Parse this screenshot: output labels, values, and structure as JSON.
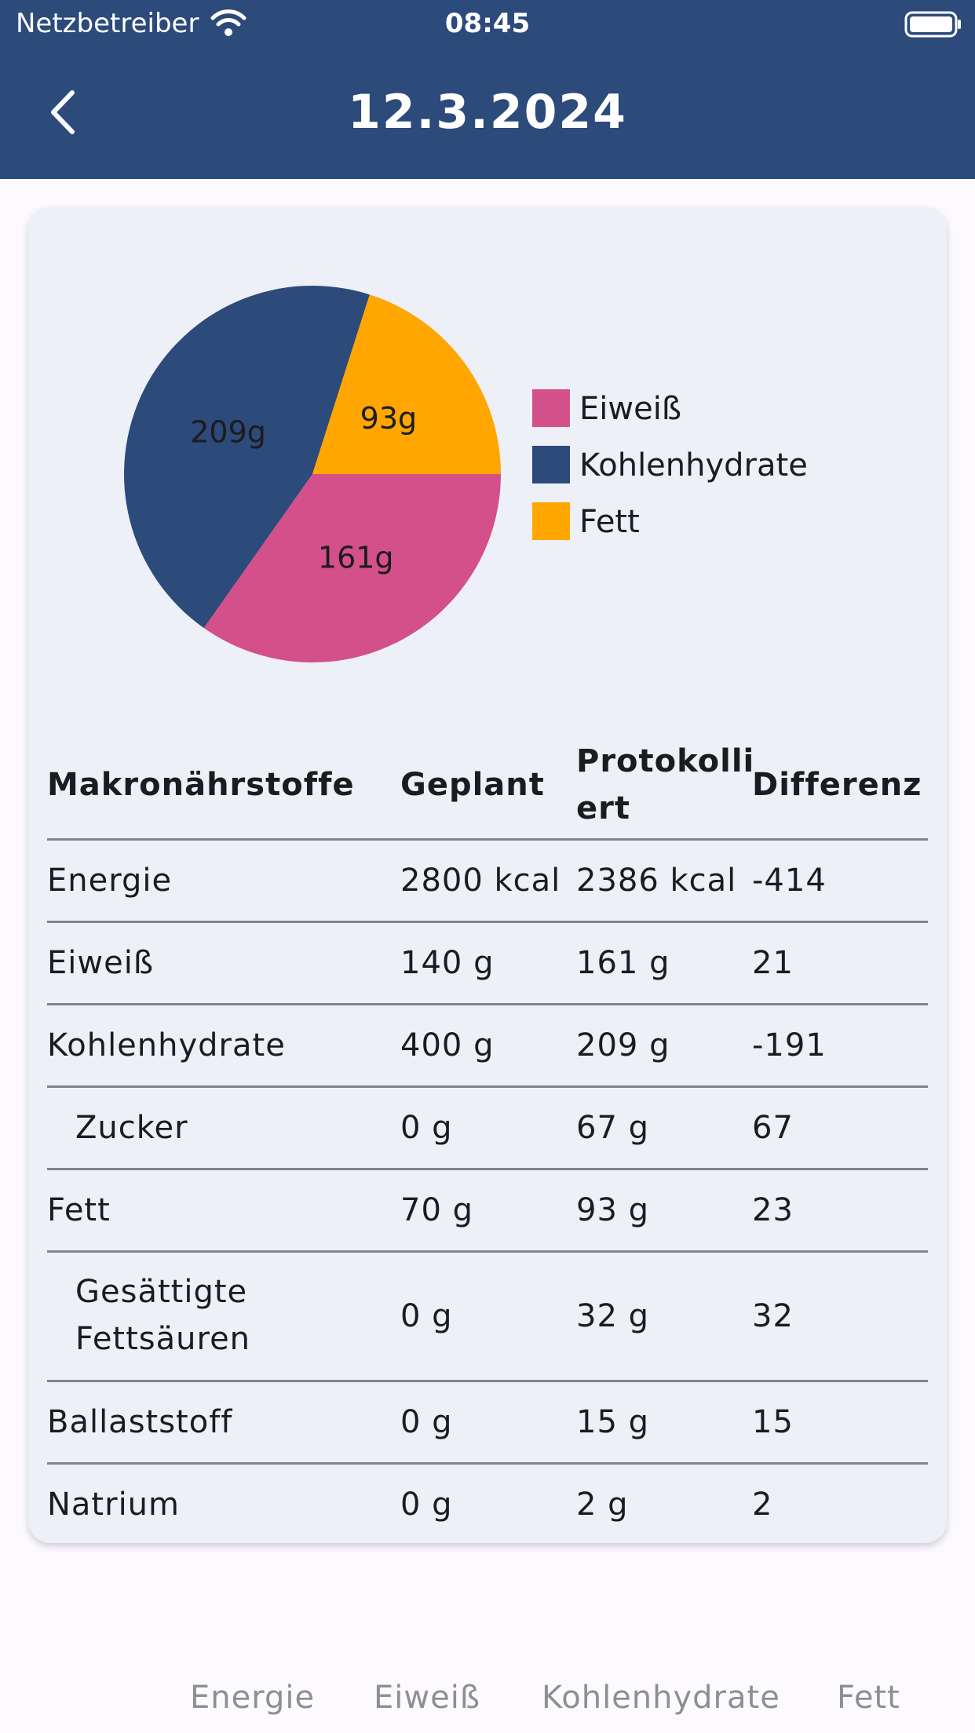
{
  "status": {
    "carrier": "Netzbetreiber",
    "time": "08:45"
  },
  "header": {
    "title": "12.3.2024"
  },
  "chart_data": {
    "type": "pie",
    "slices": [
      {
        "label": "Eiweiß",
        "value": 161,
        "display": "161g",
        "color": "#d4508a"
      },
      {
        "label": "Kohlenhydrate",
        "value": 209,
        "display": "209g",
        "color": "#2c4a7a"
      },
      {
        "label": "Fett",
        "value": 93,
        "display": "93g",
        "color": "#ffa600"
      }
    ],
    "legend": [
      "Eiweiß",
      "Kohlenhydrate",
      "Fett"
    ],
    "legend_position": "right"
  },
  "table": {
    "headers": {
      "nutrient": "Makronährstoffe",
      "planned": "Geplant",
      "logged_line1": "Protokolli",
      "logged_line2": "ert",
      "diff": "Differenz"
    },
    "rows": [
      {
        "name": "Energie",
        "planned": "2800 kcal",
        "logged": "2386 kcal",
        "diff": "-414",
        "indent": false
      },
      {
        "name": "Eiweiß",
        "planned": "140 g",
        "logged": "161 g",
        "diff": "21",
        "indent": false
      },
      {
        "name": "Kohlenhydrate",
        "planned": "400 g",
        "logged": "209 g",
        "diff": "-191",
        "indent": false
      },
      {
        "name": "Zucker",
        "planned": "0 g",
        "logged": "67 g",
        "diff": "67",
        "indent": true
      },
      {
        "name": "Fett",
        "planned": "70 g",
        "logged": "93 g",
        "diff": "23",
        "indent": false
      },
      {
        "name": "Gesättigte",
        "name2": "Fettsäuren",
        "planned": "0 g",
        "logged": "32 g",
        "diff": "32",
        "indent": true
      },
      {
        "name": "Ballaststoff",
        "planned": "0 g",
        "logged": "15 g",
        "diff": "15",
        "indent": false
      },
      {
        "name": "Natrium",
        "planned": "0 g",
        "logged": "2 g",
        "diff": "2",
        "indent": false
      }
    ]
  },
  "bottom_tabs": [
    "Energie",
    "Eiweiß",
    "Kohlenhydrate",
    "Fett"
  ],
  "icons": {
    "back": "chevron-left-icon",
    "wifi": "wifi-icon",
    "battery": "battery-icon"
  }
}
